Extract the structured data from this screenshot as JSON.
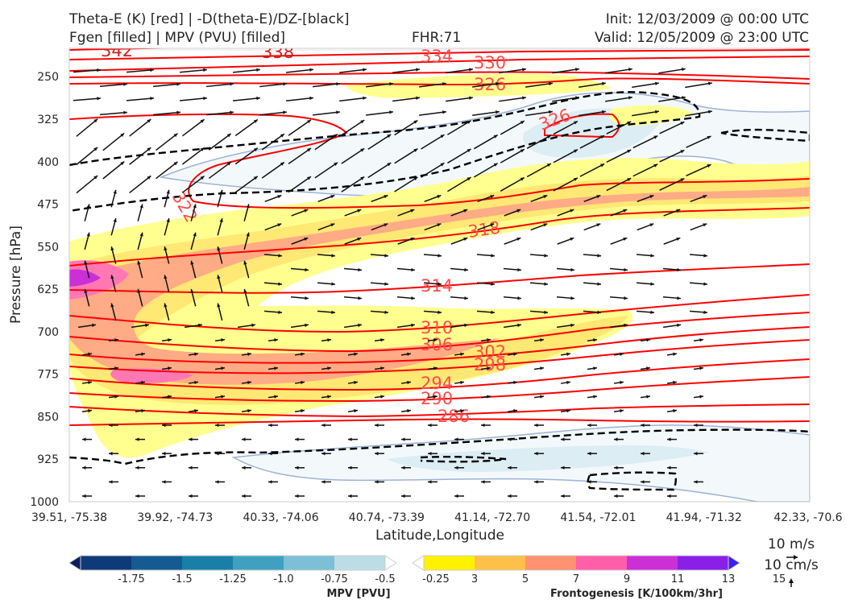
{
  "header": {
    "title_line1": "Theta-E (K) [red] | -D(theta-E)/DZ-[black]",
    "title_line2": "Fgen [filled] | MPV (PVU) [filled]",
    "fhr": "FHR:71",
    "init": "Init: 12/03/2009 @ 00:00 UTC",
    "valid": "Valid: 12/05/2009 @ 23:00 UTC"
  },
  "colors": {
    "theta_e": "#ff0000",
    "theta_e_label": "#ff4a4a",
    "stability": "#000000",
    "mpv_outline": "#9db2d6",
    "wind_arrow": "#111111"
  },
  "chart_data": {
    "type": "contour",
    "xlabel": "Latitude,Longitude",
    "ylabel": "Pressure [hPa]",
    "x_ticks": [
      "39.51, -75.38",
      "39.92, -74.73",
      "40.33, -74.06",
      "40.74, -73.39",
      "41.14, -72.70",
      "41.54, -72.01",
      "41.94, -71.32",
      "42.33, -70.6"
    ],
    "y_ticks": [
      250,
      325,
      400,
      475,
      550,
      625,
      700,
      775,
      850,
      925,
      1000
    ],
    "ylim": [
      1000,
      200
    ],
    "y_inverted": true,
    "theta_e_contours": [
      {
        "value": 342,
        "label": "342"
      },
      {
        "value": 338,
        "label": "338"
      },
      {
        "value": 334,
        "label": "334"
      },
      {
        "value": 330,
        "label": "330"
      },
      {
        "value": 326,
        "label": "326"
      },
      {
        "value": 322,
        "label": "322"
      },
      {
        "value": 318,
        "label": "318"
      },
      {
        "value": 314,
        "label": "314"
      },
      {
        "value": 310,
        "label": "310"
      },
      {
        "value": 306,
        "label": "306"
      },
      {
        "value": 302,
        "label": "302"
      },
      {
        "value": 298,
        "label": "298"
      },
      {
        "value": 294,
        "label": "294"
      },
      {
        "value": 290,
        "label": "290"
      },
      {
        "value": 286,
        "label": "286"
      }
    ],
    "mpv_colorbar": {
      "title": "MPV [PVU]",
      "levels": [
        "-1.75",
        "-1.5",
        "-1.25",
        "-1.0",
        "-0.75",
        "-0.5",
        "-0.25"
      ],
      "colors": [
        "#0a1e5c",
        "#0d3a78",
        "#135b92",
        "#1a7fa6",
        "#3fa0c0",
        "#7cbfd6",
        "#bcdde6",
        "#ffffff"
      ]
    },
    "fgen_colorbar": {
      "title": "Frontogenesis [K/100km/3hr]",
      "levels": [
        "3",
        "5",
        "7",
        "9",
        "11",
        "13",
        "15"
      ],
      "colors": [
        "#ffffff",
        "#fff200",
        "#ffc04a",
        "#ff9270",
        "#ff5ea8",
        "#cc2fd6",
        "#8a1fe8",
        "#3a1ff0"
      ]
    },
    "wind_reference": {
      "horizontal": "10 m/s",
      "vertical": "10 cm/s"
    }
  }
}
